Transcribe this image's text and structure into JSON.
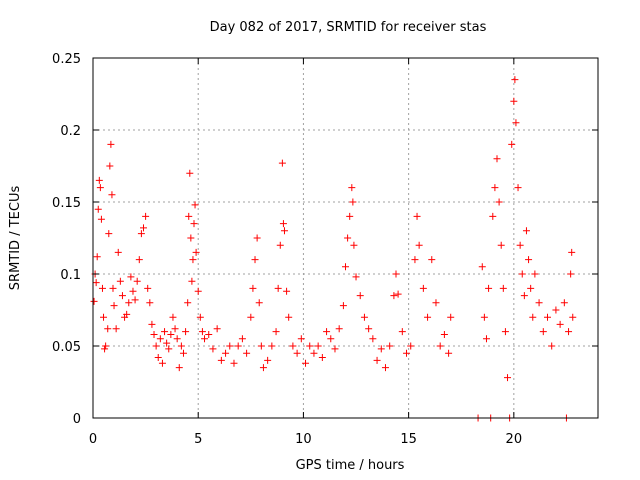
{
  "chart_data": {
    "type": "scatter",
    "title": "Day 082 of 2017, SRMTID for receiver stas",
    "xlabel": "GPS time / hours",
    "ylabel": "SRMTID / TECUs",
    "xlim": [
      0,
      24
    ],
    "ylim": [
      0,
      0.25
    ],
    "xticks": [
      0,
      5,
      10,
      15,
      20
    ],
    "xtick_labels": [
      "0",
      "5",
      "10",
      "15",
      "20"
    ],
    "yticks": [
      0,
      0.05,
      0.1,
      0.15,
      0.2,
      0.25
    ],
    "ytick_labels": [
      "0",
      "0.05",
      "0.1",
      "0.15",
      "0.2",
      "0.25"
    ],
    "grid": true,
    "marker": "plus",
    "series": [
      {
        "name": "SRMTID",
        "color": "#ff0000",
        "points": [
          [
            0.05,
            0.081
          ],
          [
            0.1,
            0.1
          ],
          [
            0.15,
            0.094
          ],
          [
            0.2,
            0.112
          ],
          [
            0.25,
            0.145
          ],
          [
            0.3,
            0.165
          ],
          [
            0.35,
            0.16
          ],
          [
            0.4,
            0.138
          ],
          [
            0.45,
            0.09
          ],
          [
            0.5,
            0.07
          ],
          [
            0.55,
            0.048
          ],
          [
            0.6,
            0.05
          ],
          [
            0.7,
            0.062
          ],
          [
            0.75,
            0.128
          ],
          [
            0.8,
            0.175
          ],
          [
            0.85,
            0.19
          ],
          [
            0.9,
            0.155
          ],
          [
            0.95,
            0.09
          ],
          [
            1.0,
            0.078
          ],
          [
            1.1,
            0.062
          ],
          [
            1.2,
            0.115
          ],
          [
            1.3,
            0.095
          ],
          [
            1.4,
            0.085
          ],
          [
            1.5,
            0.07
          ],
          [
            1.6,
            0.072
          ],
          [
            1.7,
            0.08
          ],
          [
            1.8,
            0.098
          ],
          [
            1.9,
            0.088
          ],
          [
            2.0,
            0.082
          ],
          [
            2.1,
            0.095
          ],
          [
            2.2,
            0.11
          ],
          [
            2.3,
            0.128
          ],
          [
            2.4,
            0.132
          ],
          [
            2.5,
            0.14
          ],
          [
            2.6,
            0.09
          ],
          [
            2.7,
            0.08
          ],
          [
            2.8,
            0.065
          ],
          [
            2.9,
            0.058
          ],
          [
            3.0,
            0.05
          ],
          [
            3.1,
            0.042
          ],
          [
            3.2,
            0.055
          ],
          [
            3.3,
            0.038
          ],
          [
            3.4,
            0.06
          ],
          [
            3.5,
            0.052
          ],
          [
            3.6,
            0.048
          ],
          [
            3.7,
            0.058
          ],
          [
            3.8,
            0.07
          ],
          [
            3.9,
            0.062
          ],
          [
            4.0,
            0.055
          ],
          [
            4.1,
            0.035
          ],
          [
            4.2,
            0.05
          ],
          [
            4.3,
            0.045
          ],
          [
            4.4,
            0.06
          ],
          [
            4.5,
            0.08
          ],
          [
            4.55,
            0.14
          ],
          [
            4.6,
            0.17
          ],
          [
            4.65,
            0.125
          ],
          [
            4.7,
            0.095
          ],
          [
            4.75,
            0.11
          ],
          [
            4.8,
            0.135
          ],
          [
            4.85,
            0.148
          ],
          [
            4.9,
            0.115
          ],
          [
            5.0,
            0.088
          ],
          [
            5.1,
            0.07
          ],
          [
            5.2,
            0.06
          ],
          [
            5.3,
            0.055
          ],
          [
            5.5,
            0.058
          ],
          [
            5.7,
            0.048
          ],
          [
            5.9,
            0.062
          ],
          [
            6.1,
            0.04
          ],
          [
            6.3,
            0.045
          ],
          [
            6.5,
            0.05
          ],
          [
            6.7,
            0.038
          ],
          [
            6.9,
            0.05
          ],
          [
            7.1,
            0.055
          ],
          [
            7.3,
            0.045
          ],
          [
            7.5,
            0.07
          ],
          [
            7.6,
            0.09
          ],
          [
            7.7,
            0.11
          ],
          [
            7.8,
            0.125
          ],
          [
            7.9,
            0.08
          ],
          [
            8.0,
            0.05
          ],
          [
            8.1,
            0.035
          ],
          [
            8.3,
            0.04
          ],
          [
            8.5,
            0.05
          ],
          [
            8.7,
            0.06
          ],
          [
            8.8,
            0.09
          ],
          [
            8.9,
            0.12
          ],
          [
            9.0,
            0.177
          ],
          [
            9.05,
            0.135
          ],
          [
            9.1,
            0.13
          ],
          [
            9.2,
            0.088
          ],
          [
            9.3,
            0.07
          ],
          [
            9.5,
            0.05
          ],
          [
            9.7,
            0.045
          ],
          [
            9.9,
            0.055
          ],
          [
            10.1,
            0.038
          ],
          [
            10.3,
            0.05
          ],
          [
            10.5,
            0.045
          ],
          [
            10.7,
            0.05
          ],
          [
            10.9,
            0.042
          ],
          [
            11.1,
            0.06
          ],
          [
            11.3,
            0.055
          ],
          [
            11.5,
            0.048
          ],
          [
            11.7,
            0.062
          ],
          [
            11.9,
            0.078
          ],
          [
            12.0,
            0.105
          ],
          [
            12.1,
            0.125
          ],
          [
            12.2,
            0.14
          ],
          [
            12.3,
            0.16
          ],
          [
            12.35,
            0.15
          ],
          [
            12.4,
            0.12
          ],
          [
            12.5,
            0.098
          ],
          [
            12.7,
            0.085
          ],
          [
            12.9,
            0.07
          ],
          [
            13.1,
            0.062
          ],
          [
            13.3,
            0.055
          ],
          [
            13.5,
            0.04
          ],
          [
            13.7,
            0.048
          ],
          [
            13.9,
            0.035
          ],
          [
            14.1,
            0.05
          ],
          [
            14.3,
            0.085
          ],
          [
            14.4,
            0.1
          ],
          [
            14.5,
            0.086
          ],
          [
            14.7,
            0.06
          ],
          [
            14.9,
            0.045
          ],
          [
            15.1,
            0.05
          ],
          [
            15.3,
            0.11
          ],
          [
            15.4,
            0.14
          ],
          [
            15.5,
            0.12
          ],
          [
            15.7,
            0.09
          ],
          [
            15.9,
            0.07
          ],
          [
            16.1,
            0.11
          ],
          [
            16.3,
            0.08
          ],
          [
            16.5,
            0.05
          ],
          [
            16.7,
            0.058
          ],
          [
            16.9,
            0.045
          ],
          [
            17.0,
            0.07
          ],
          [
            18.3,
            0.0
          ],
          [
            18.5,
            0.105
          ],
          [
            18.6,
            0.07
          ],
          [
            18.7,
            0.055
          ],
          [
            18.8,
            0.09
          ],
          [
            18.9,
            0.0
          ],
          [
            19.0,
            0.14
          ],
          [
            19.1,
            0.16
          ],
          [
            19.2,
            0.18
          ],
          [
            19.3,
            0.15
          ],
          [
            19.4,
            0.12
          ],
          [
            19.5,
            0.09
          ],
          [
            19.6,
            0.06
          ],
          [
            19.7,
            0.028
          ],
          [
            19.8,
            0.0
          ],
          [
            19.9,
            0.19
          ],
          [
            20.0,
            0.22
          ],
          [
            20.05,
            0.235
          ],
          [
            20.1,
            0.205
          ],
          [
            20.2,
            0.16
          ],
          [
            20.3,
            0.12
          ],
          [
            20.4,
            0.1
          ],
          [
            20.5,
            0.085
          ],
          [
            20.6,
            0.13
          ],
          [
            20.7,
            0.11
          ],
          [
            20.8,
            0.09
          ],
          [
            20.9,
            0.07
          ],
          [
            21.0,
            0.1
          ],
          [
            21.2,
            0.08
          ],
          [
            21.4,
            0.06
          ],
          [
            21.6,
            0.07
          ],
          [
            21.8,
            0.05
          ],
          [
            22.0,
            0.075
          ],
          [
            22.2,
            0.065
          ],
          [
            22.4,
            0.08
          ],
          [
            22.5,
            0.0
          ],
          [
            22.6,
            0.06
          ],
          [
            22.7,
            0.1
          ],
          [
            22.75,
            0.115
          ],
          [
            22.8,
            0.07
          ]
        ]
      }
    ]
  }
}
